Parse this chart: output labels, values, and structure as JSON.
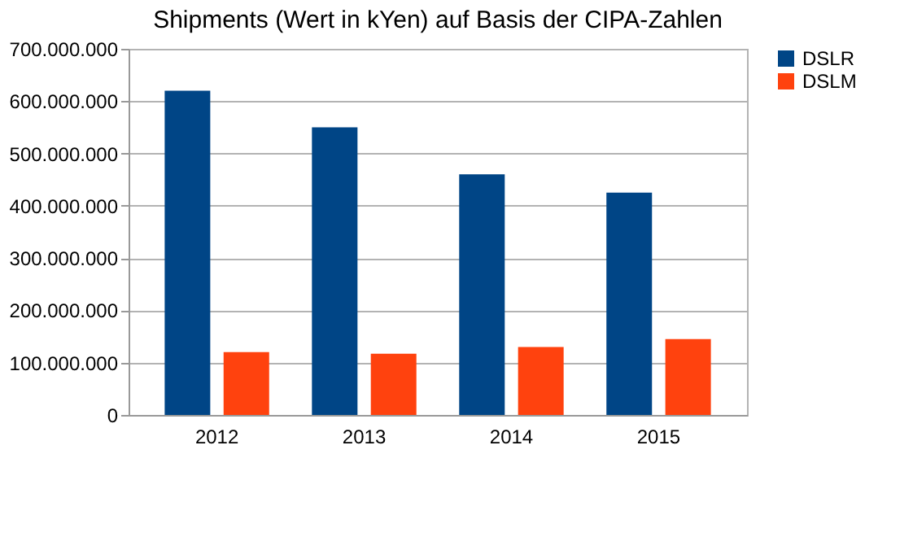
{
  "chart_data": {
    "type": "bar",
    "title": "Shipments (Wert in kYen) auf Basis der CIPA-Zahlen",
    "categories": [
      "2012",
      "2013",
      "2014",
      "2015"
    ],
    "series": [
      {
        "name": "DSLR",
        "color": "#004586",
        "values": [
          620000000,
          550000000,
          460000000,
          425000000
        ]
      },
      {
        "name": "DSLM",
        "color": "#ff420e",
        "values": [
          120000000,
          117000000,
          130000000,
          145000000
        ]
      }
    ],
    "ylim": [
      0,
      700000000
    ],
    "yticks": [
      {
        "value": 0,
        "label": "0"
      },
      {
        "value": 100000000,
        "label": "100.000.000"
      },
      {
        "value": 200000000,
        "label": "200.000.000"
      },
      {
        "value": 300000000,
        "label": "300.000.000"
      },
      {
        "value": 400000000,
        "label": "400.000.000"
      },
      {
        "value": 500000000,
        "label": "500.000.000"
      },
      {
        "value": 600000000,
        "label": "600.000.000"
      },
      {
        "value": 700000000,
        "label": "700.000.000"
      }
    ],
    "grid": "y",
    "legend": "right"
  }
}
